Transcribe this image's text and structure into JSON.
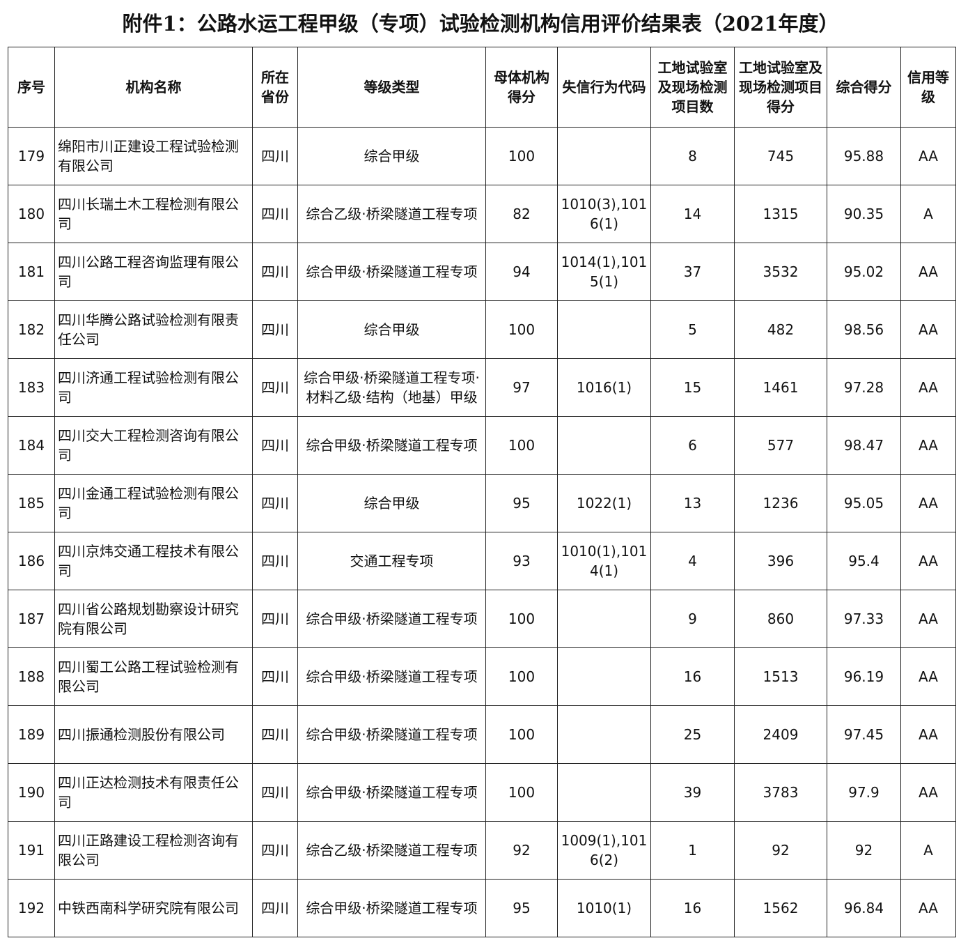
{
  "header": {
    "title": "附件1：公路水运工程甲级（专项）试验检测机构信用评价结果表（2021年度）"
  },
  "table": {
    "columns": [
      "序号",
      "机构名称",
      "所在省份",
      "等级类型",
      "母体机构得分",
      "失信行为代码",
      "工地试验室及现场检测项目数",
      "工地试验室及现场检测项目得分",
      "综合得分",
      "信用等级"
    ],
    "rows": [
      [
        "179",
        "绵阳市川正建设工程试验检测有限公司",
        "四川",
        "综合甲级",
        "100",
        null,
        "8",
        "745",
        "95.88",
        "AA"
      ],
      [
        "180",
        "四川长瑞土木工程检测有限公司",
        "四川",
        "综合乙级·桥梁隧道工程专项",
        "82",
        "1010(3),1016(1)",
        "14",
        "1315",
        "90.35",
        "A"
      ],
      [
        "181",
        "四川公路工程咨询监理有限公司",
        "四川",
        "综合甲级·桥梁隧道工程专项",
        "94",
        "1014(1),1015(1)",
        "37",
        "3532",
        "95.02",
        "AA"
      ],
      [
        "182",
        "四川华腾公路试验检测有限责任公司",
        "四川",
        "综合甲级",
        "100",
        null,
        "5",
        "482",
        "98.56",
        "AA"
      ],
      [
        "183",
        "四川济通工程试验检测有限公司",
        "四川",
        "综合甲级·桥梁隧道工程专项·材料乙级·结构（地基）甲级",
        "97",
        "1016(1)",
        "15",
        "1461",
        "97.28",
        "AA"
      ],
      [
        "184",
        "四川交大工程检测咨询有限公司",
        "四川",
        "综合甲级·桥梁隧道工程专项",
        "100",
        null,
        "6",
        "577",
        "98.47",
        "AA"
      ],
      [
        "185",
        "四川金通工程试验检测有限公司",
        "四川",
        "综合甲级",
        "95",
        "1022(1)",
        "13",
        "1236",
        "95.05",
        "AA"
      ],
      [
        "186",
        "四川京炜交通工程技术有限公司",
        "四川",
        "交通工程专项",
        "93",
        "1010(1),1014(1)",
        "4",
        "396",
        "95.4",
        "AA"
      ],
      [
        "187",
        "四川省公路规划勘察设计研究院有限公司",
        "四川",
        "综合甲级·桥梁隧道工程专项",
        "100",
        null,
        "9",
        "860",
        "97.33",
        "AA"
      ],
      [
        "188",
        "四川蜀工公路工程试验检测有限公司",
        "四川",
        "综合甲级·桥梁隧道工程专项",
        "100",
        null,
        "16",
        "1513",
        "96.19",
        "AA"
      ],
      [
        "189",
        "四川振通检测股份有限公司",
        "四川",
        "综合甲级·桥梁隧道工程专项",
        "100",
        null,
        "25",
        "2409",
        "97.45",
        "AA"
      ],
      [
        "190",
        "四川正达检测技术有限责任公司",
        "四川",
        "综合甲级·桥梁隧道工程专项",
        "100",
        null,
        "39",
        "3783",
        "97.9",
        "AA"
      ],
      [
        "191",
        "四川正路建设工程检测咨询有限公司",
        "四川",
        "综合乙级·桥梁隧道工程专项",
        "92",
        "1009(1),1016(2)",
        "1",
        "92",
        "92",
        "A"
      ],
      [
        "192",
        "中铁西南科学研究院有限公司",
        "四川",
        "综合甲级·桥梁隧道工程专项",
        "95",
        "1010(1)",
        "16",
        "1562",
        "96.84",
        "AA"
      ]
    ]
  }
}
